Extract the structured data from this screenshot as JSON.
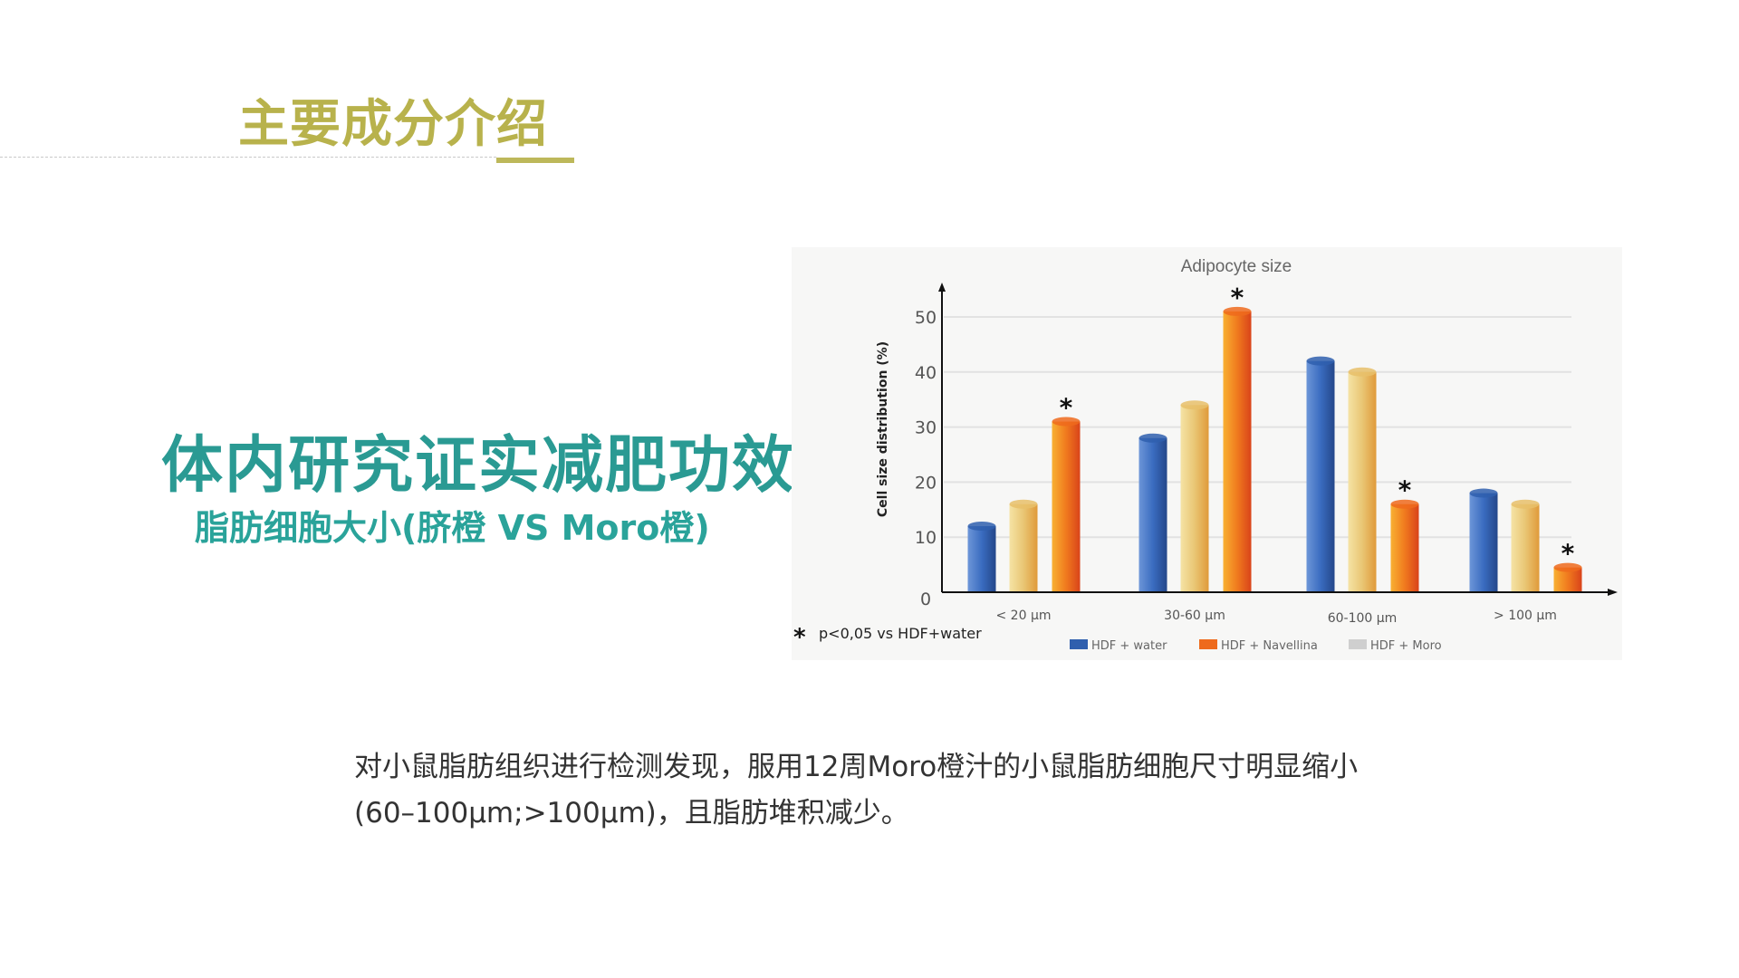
{
  "header": {
    "title": "主要成分介绍"
  },
  "main": {
    "heading": "体内研究证实减肥功效",
    "subheading": "脂肪细胞大小(脐橙 VS Moro橙)",
    "description": "对小鼠脂肪组织进行检测发现，服用12周Moro橙汁的小鼠脂肪细胞尺寸明显缩小(60–100μm;>100μm)，且脂肪堆积减少。"
  },
  "colors": {
    "title": "#b8b24c",
    "heading": "#2a9a93",
    "water": "#2f5fae",
    "navellina": "#ee6a1c",
    "moro": "#e8c06a"
  },
  "chart_data": {
    "type": "bar",
    "title": "Adipocyte size",
    "ylabel": "Cell size distribution (%)",
    "xlabel": "",
    "ylim": [
      0,
      55
    ],
    "yticks": [
      "0",
      "10",
      "20",
      "30",
      "40",
      "50"
    ],
    "grid": true,
    "categories": [
      "< 20 μm",
      "30-60 μm",
      "60-100 μm",
      "> 100 μm"
    ],
    "series": [
      {
        "name": "HDF + water",
        "color": "#2f5fae",
        "values": [
          12,
          28,
          42,
          18
        ]
      },
      {
        "name": "HDF + Moro",
        "color": "#e8c06a",
        "values": [
          16,
          34,
          40,
          16
        ]
      },
      {
        "name": "HDF + Navellina",
        "color": "#ee6a1c",
        "values": [
          31,
          51,
          16,
          4.5
        ]
      }
    ],
    "significance_marker": "*",
    "significant": [
      [
        false,
        false,
        true
      ],
      [
        false,
        false,
        true
      ],
      [
        false,
        false,
        true
      ],
      [
        false,
        false,
        true
      ]
    ],
    "footnote": "p<0,05 vs HDF+water",
    "legend_order": [
      "HDF + water",
      "HDF + Navellina",
      "HDF + Moro"
    ],
    "legend_placement": "bottom"
  }
}
